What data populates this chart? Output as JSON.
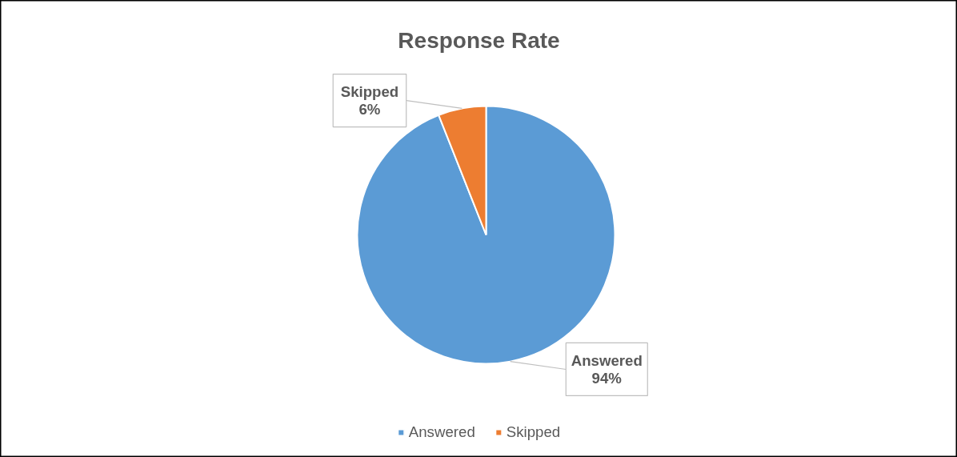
{
  "chart_data": {
    "type": "pie",
    "title": "Response Rate",
    "categories": [
      "Answered",
      "Skipped"
    ],
    "values": [
      94,
      6
    ],
    "colors": [
      "#5b9bd5",
      "#ed7d31"
    ],
    "value_labels": [
      "94%",
      "6%"
    ],
    "legend": "bottom"
  }
}
